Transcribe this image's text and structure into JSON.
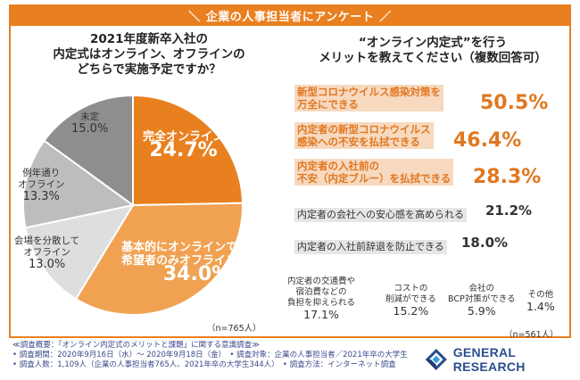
{
  "header": {
    "title": "企業の人事担当者にアンケート",
    "slash_left": "＼",
    "slash_right": "／"
  },
  "colors": {
    "accent": "#e97f1f",
    "orange_dark": "#e9801f",
    "orange_mid": "#f0a252",
    "gray_dark": "#8e8e8e",
    "gray_mid": "#bdbdbd",
    "gray_light": "#dedede"
  },
  "chart_data": [
    {
      "type": "pie",
      "title": [
        "2021年度新卒入社の",
        "内定式はオンライン、オフラインの",
        "どちらで実施予定ですか？"
      ],
      "sample": "（n=765人）",
      "slices": [
        {
          "label": [
            "完全オンライン"
          ],
          "value": 24.7,
          "value_label": "24.7%",
          "color": "#e9801f"
        },
        {
          "label": [
            "基本的にオンラインで",
            "希望者のみオフライン"
          ],
          "value": 34.0,
          "value_label": "34.0%",
          "color": "#f0a252"
        },
        {
          "label": [
            "会場を分散して",
            "オフライン"
          ],
          "value": 13.0,
          "value_label": "13.0%",
          "color": "#dedede"
        },
        {
          "label": [
            "例年通り",
            "オフライン"
          ],
          "value": 13.3,
          "value_label": "13.3%",
          "color": "#bdbdbd"
        },
        {
          "label": [
            "未定"
          ],
          "value": 15.0,
          "value_label": "15.0%",
          "color": "#8e8e8e"
        }
      ]
    },
    {
      "type": "bar",
      "title": [
        "“オンライン内定式”を行う",
        "メリットを教えてください（複数回答可）"
      ],
      "sample": "（n=561人）",
      "items": [
        {
          "label": [
            "新型コロナウイルス感染対策を",
            "万全にできる"
          ],
          "value": 50.5,
          "value_label": "50.5%",
          "highlight": true
        },
        {
          "label": [
            "内定者の新型コロナウイルス",
            "感染への不安を払拭できる"
          ],
          "value": 46.4,
          "value_label": "46.4%",
          "highlight": true
        },
        {
          "label": [
            "内定者の入社前の",
            "不安（内定ブルー）を払拭できる"
          ],
          "value": 28.3,
          "value_label": "28.3%",
          "highlight": true
        },
        {
          "label": [
            "内定者の会社への安心感を高められる"
          ],
          "value": 21.2,
          "value_label": "21.2%",
          "highlight": false
        },
        {
          "label": [
            "内定者の入社前辞退を防止できる"
          ],
          "value": 18.0,
          "value_label": "18.0%",
          "highlight": false
        },
        {
          "label": [
            "内定者の交通費や",
            "宿泊費などの",
            "負担を抑えられる"
          ],
          "value": 17.1,
          "value_label": "17.1%",
          "highlight": false
        },
        {
          "label": [
            "コストの",
            "削減ができる"
          ],
          "value": 15.2,
          "value_label": "15.2%",
          "highlight": false
        },
        {
          "label": [
            "会社の",
            "BCP対策ができる"
          ],
          "value": 5.9,
          "value_label": "5.9%",
          "highlight": false
        },
        {
          "label": [
            "その他"
          ],
          "value": 1.4,
          "value_label": "1.4%",
          "highlight": false
        }
      ]
    }
  ],
  "footer": {
    "lines": [
      "≪調査概要：「オンライン内定式のメリットと課題」に関する意識調査≫",
      "• 調査期間：2020年9月16日（水）〜 2020年9月18日（金）　• 調査対象：企業の人事担当者／2021年卒の大学生",
      "• 調査人数：1,109人（企業の人事担当者765人、2021年卒の大学生344人）　• 調査方法：インターネット調査"
    ]
  },
  "logo": {
    "text": "GENERAL RESEARCH",
    "icon": "general-research-logo-icon"
  }
}
